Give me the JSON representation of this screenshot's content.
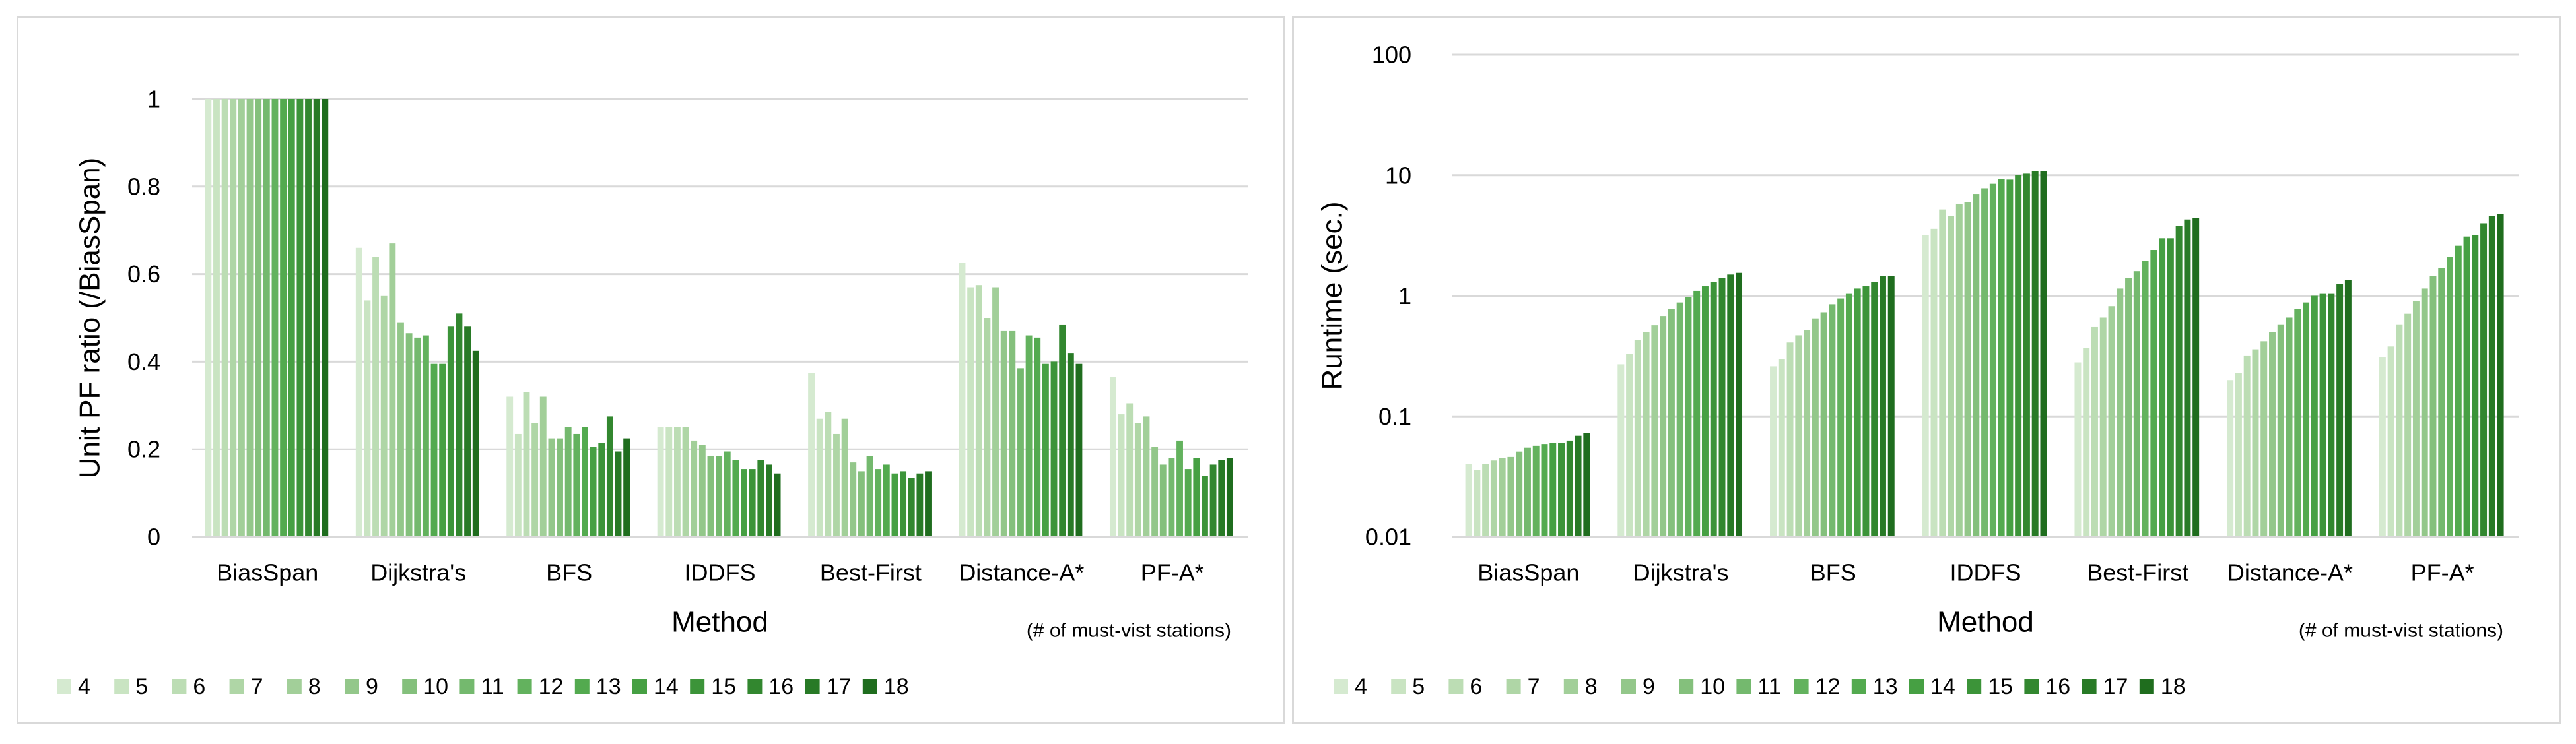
{
  "chart_data": [
    {
      "type": "bar",
      "title": "",
      "xlabel": "Method",
      "ylabel": "Unit PF ratio (/BiasSpan)",
      "ylim": [
        0,
        1
      ],
      "yscale": "linear",
      "yticks": [
        "0",
        "0.2",
        "0.4",
        "0.6",
        "0.8",
        "1"
      ],
      "ytick_values": [
        0,
        0.2,
        0.4,
        0.6,
        0.8,
        1
      ],
      "grid": true,
      "legend_position": "bottom",
      "legend_title": "(# of must-vist stations)",
      "categories": [
        "BiasSpan",
        "Dijkstra's",
        "BFS",
        "IDDFS",
        "Best-First",
        "Distance-A*",
        "PF-A*"
      ],
      "series": [
        {
          "name": "4",
          "values": [
            1,
            0.66,
            0.32,
            0.25,
            0.375,
            0.625,
            0.365
          ]
        },
        {
          "name": "5",
          "values": [
            1,
            0.54,
            0.235,
            0.25,
            0.27,
            0.57,
            0.28
          ]
        },
        {
          "name": "6",
          "values": [
            1,
            0.64,
            0.33,
            0.25,
            0.285,
            0.575,
            0.305
          ]
        },
        {
          "name": "7",
          "values": [
            1,
            0.55,
            0.26,
            0.25,
            0.235,
            0.5,
            0.26
          ]
        },
        {
          "name": "8",
          "values": [
            1,
            0.67,
            0.32,
            0.22,
            0.27,
            0.57,
            0.275
          ]
        },
        {
          "name": "9",
          "values": [
            1,
            0.49,
            0.225,
            0.21,
            0.17,
            0.47,
            0.205
          ]
        },
        {
          "name": "10",
          "values": [
            1,
            0.465,
            0.225,
            0.185,
            0.15,
            0.47,
            0.165
          ]
        },
        {
          "name": "11",
          "values": [
            1,
            0.455,
            0.25,
            0.185,
            0.185,
            0.385,
            0.18
          ]
        },
        {
          "name": "12",
          "values": [
            1,
            0.46,
            0.235,
            0.195,
            0.155,
            0.46,
            0.22
          ]
        },
        {
          "name": "13",
          "values": [
            1,
            0.395,
            0.25,
            0.175,
            0.165,
            0.455,
            0.155
          ]
        },
        {
          "name": "14",
          "values": [
            1,
            0.395,
            0.205,
            0.155,
            0.145,
            0.395,
            0.18
          ]
        },
        {
          "name": "15",
          "values": [
            1,
            0.48,
            0.215,
            0.155,
            0.15,
            0.4,
            0.14
          ]
        },
        {
          "name": "16",
          "values": [
            1,
            0.51,
            0.275,
            0.175,
            0.135,
            0.485,
            0.165
          ]
        },
        {
          "name": "17",
          "values": [
            1,
            0.48,
            0.195,
            0.165,
            0.145,
            0.42,
            0.175
          ]
        },
        {
          "name": "18",
          "values": [
            1,
            0.425,
            0.225,
            0.145,
            0.15,
            0.395,
            0.18
          ]
        }
      ]
    },
    {
      "type": "bar",
      "title": "",
      "xlabel": "Method",
      "ylabel": "Runtime (sec.)",
      "ylim": [
        0.01,
        100
      ],
      "yscale": "log",
      "yticks": [
        "0.01",
        "0.1",
        "1",
        "10",
        "100"
      ],
      "ytick_values": [
        0.01,
        0.1,
        1,
        10,
        100
      ],
      "grid": true,
      "legend_position": "bottom",
      "legend_title": "(# of must-vist stations)",
      "categories": [
        "BiasSpan",
        "Dijkstra's",
        "BFS",
        "IDDFS",
        "Best-First",
        "Distance-A*",
        "PF-A*"
      ],
      "series": [
        {
          "name": "4",
          "values": [
            0.04,
            0.27,
            0.26,
            3.2,
            0.28,
            0.2,
            0.31
          ]
        },
        {
          "name": "5",
          "values": [
            0.036,
            0.33,
            0.3,
            3.6,
            0.37,
            0.23,
            0.38
          ]
        },
        {
          "name": "6",
          "values": [
            0.04,
            0.43,
            0.41,
            5.2,
            0.55,
            0.32,
            0.58
          ]
        },
        {
          "name": "7",
          "values": [
            0.043,
            0.5,
            0.47,
            4.6,
            0.66,
            0.36,
            0.71
          ]
        },
        {
          "name": "8",
          "values": [
            0.045,
            0.57,
            0.52,
            5.8,
            0.82,
            0.42,
            0.9
          ]
        },
        {
          "name": "9",
          "values": [
            0.046,
            0.68,
            0.65,
            6.0,
            1.15,
            0.5,
            1.15
          ]
        },
        {
          "name": "10",
          "values": [
            0.051,
            0.78,
            0.73,
            7.0,
            1.4,
            0.58,
            1.45
          ]
        },
        {
          "name": "11",
          "values": [
            0.055,
            0.88,
            0.85,
            7.8,
            1.6,
            0.66,
            1.7
          ]
        },
        {
          "name": "12",
          "values": [
            0.057,
            0.97,
            0.95,
            8.5,
            1.95,
            0.78,
            2.1
          ]
        },
        {
          "name": "13",
          "values": [
            0.059,
            1.1,
            1.05,
            9.3,
            2.4,
            0.88,
            2.6
          ]
        },
        {
          "name": "14",
          "values": [
            0.06,
            1.2,
            1.15,
            9.2,
            3.0,
            1.0,
            3.1
          ]
        },
        {
          "name": "15",
          "values": [
            0.06,
            1.3,
            1.2,
            10.0,
            3.0,
            1.05,
            3.2
          ]
        },
        {
          "name": "16",
          "values": [
            0.063,
            1.4,
            1.3,
            10.3,
            3.8,
            1.05,
            4.0
          ]
        },
        {
          "name": "17",
          "values": [
            0.069,
            1.5,
            1.45,
            10.8,
            4.3,
            1.25,
            4.6
          ]
        },
        {
          "name": "18",
          "values": [
            0.073,
            1.55,
            1.45,
            10.8,
            4.4,
            1.35,
            4.8
          ]
        }
      ]
    }
  ],
  "series_colors": [
    "#d5ead0",
    "#c9e4c2",
    "#bcddb4",
    "#afd6a6",
    "#a2cf99",
    "#93c78a",
    "#84c07c",
    "#74b96e",
    "#63b25e",
    "#53aa4f",
    "#46a043",
    "#3c9439",
    "#32872f",
    "#287a26",
    "#1f6d1e"
  ],
  "grid_color": "#d9d9d9",
  "text_color": "#000000"
}
